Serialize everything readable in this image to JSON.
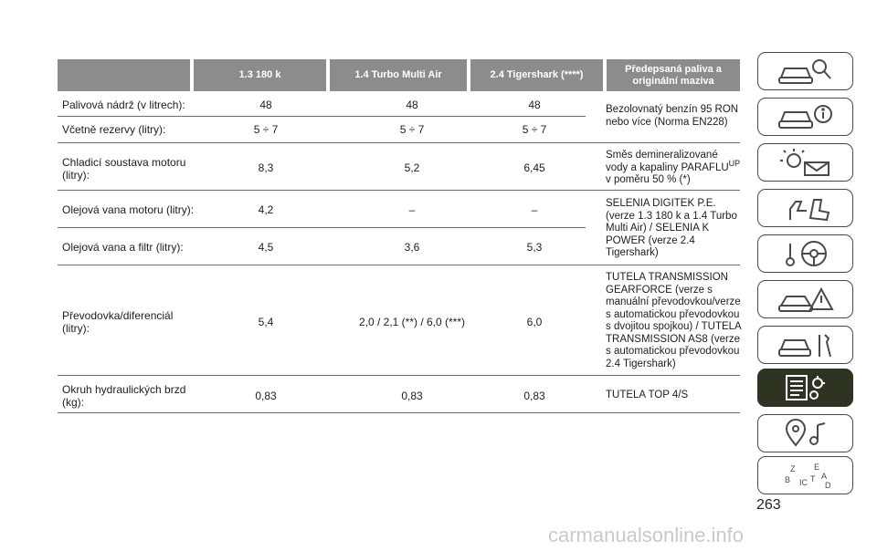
{
  "table": {
    "headers": [
      "1.3 180 k",
      "1.4 Turbo Multi Air",
      "2.4 Tigershark (****)",
      "Předepsaná paliva a originální maziva"
    ],
    "rows": [
      {
        "label": "Palivová nádrž (v litrech):",
        "v1": "48",
        "v2": "48",
        "v3": "48"
      },
      {
        "label": "Včetně rezervy (litry):",
        "v1": "5 ÷ 7",
        "v2": "5 ÷ 7",
        "v3": "5 ÷ 7"
      },
      {
        "label": "Chladicí soustava motoru (litry):",
        "v1": "8,3",
        "v2": "5,2",
        "v3": "6,45"
      },
      {
        "label": "Olejová vana motoru (litry):",
        "v1": "4,2",
        "v2": "–",
        "v3": "–"
      },
      {
        "label": "Olejová vana a filtr (litry):",
        "v1": "4,5",
        "v2": "3,6",
        "v3": "5,3"
      },
      {
        "label": "Převodovka/diferenciál (litry):",
        "v1": "5,4",
        "v2": "2,0 / 2,1 (**) / 6,0 (***)",
        "v3": "6,0"
      },
      {
        "label": "Okruh hydraulických brzd (kg):",
        "v1": "0,83",
        "v2": "0,83",
        "v3": "0,83"
      }
    ],
    "fluids": {
      "fuel": "Bezolovnatý benzín 95 RON nebo více (Norma EN228)",
      "coolant_a": "Směs demineralizované vody a kapaliny PARAFLU",
      "coolant_sup": "UP",
      "coolant_b": " v poměru 50 % (*)",
      "oil": "SELENIA DIGITEK P.E. (verze 1.3 180 k a 1.4 Turbo Multi Air) / SELENIA K POWER (verze 2.4 Tigershark)",
      "transmission": "TUTELA TRANSMISSION GEARFORCE (verze s manuální převodovkou/verze s automatickou převodovkou s dvojitou spojkou) / TUTELA TRANSMISSION AS8 (verze s automatickou převodovkou 2.4 Tigershark)",
      "brake": "TUTELA TOP 4/S"
    }
  },
  "page_number": "263",
  "watermark": "carmanualsonline.info",
  "sidebar_icons": [
    "car-search-icon",
    "car-info-icon",
    "light-envelope-icon",
    "hand-seat-icon",
    "steering-wheel-icon",
    "car-warning-icon",
    "car-tools-icon",
    "gear-list-icon",
    "map-music-icon",
    "alphabet-index-icon"
  ],
  "active_tab": "gear-list-icon",
  "colors": {
    "header_bg": "#8c8c8c",
    "active_tab_bg": "#2d3522",
    "rule": "#6e6e6e"
  }
}
